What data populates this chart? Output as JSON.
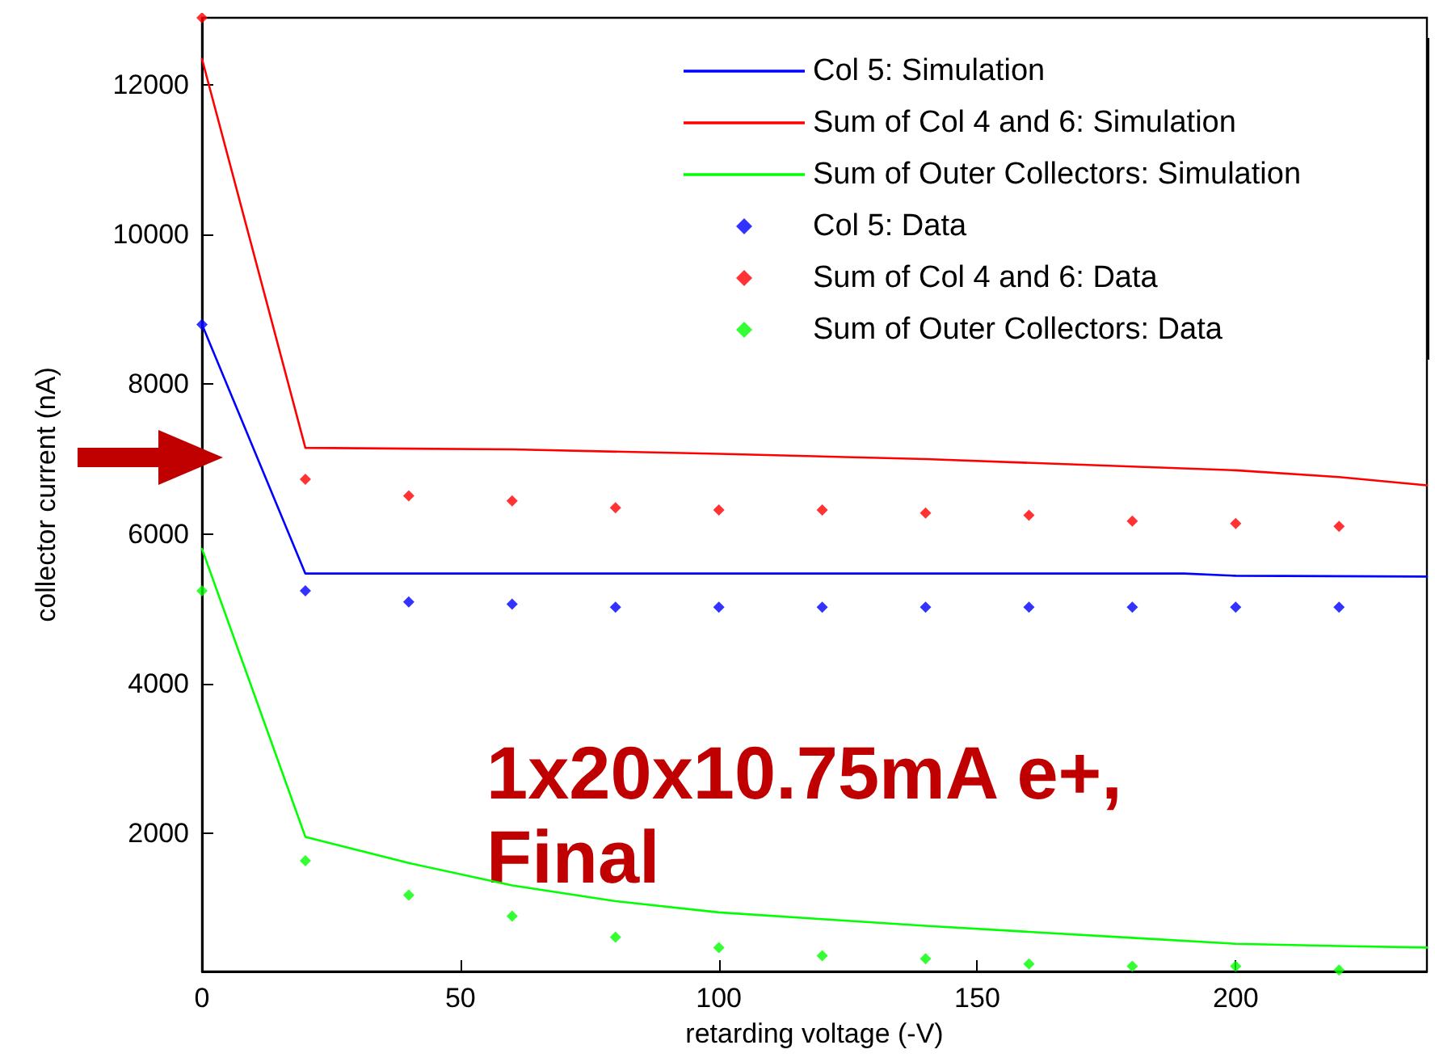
{
  "chart_data": {
    "type": "line",
    "xlabel": "retarding voltage (-V)",
    "ylabel": "collector current (nA)",
    "xlim": [
      0,
      237
    ],
    "ylim": [
      150,
      12900
    ],
    "xticks": [
      0,
      50,
      100,
      150,
      200
    ],
    "yticks": [
      2000,
      4000,
      6000,
      8000,
      10000,
      12000
    ],
    "grid": false,
    "legend": "top right",
    "annotations": [
      "1x20x10.75mA e+,\nFinal"
    ],
    "series": [
      {
        "name": "Col 5: Simulation",
        "color": "#0000ff",
        "line_style": "solid",
        "marker": "none",
        "x": [
          0,
          20,
          190,
          200,
          237
        ],
        "values": [
          8800,
          5470,
          5470,
          5440,
          5430
        ]
      },
      {
        "name": "Sum of Col 4 and 6: Simulation",
        "color": "#ff0000",
        "line_style": "solid",
        "marker": "none",
        "x": [
          0,
          20,
          60,
          100,
          140,
          180,
          200,
          220,
          237
        ],
        "values": [
          12350,
          7150,
          7130,
          7070,
          7000,
          6900,
          6850,
          6760,
          6650
        ]
      },
      {
        "name": "Sum of Outer Collectors: Simulation",
        "color": "#00ff00",
        "line_style": "solid",
        "marker": "none",
        "x": [
          0,
          20,
          40,
          60,
          80,
          100,
          120,
          140,
          160,
          180,
          200,
          220,
          237
        ],
        "values": [
          5800,
          1950,
          1600,
          1300,
          1090,
          940,
          850,
          760,
          680,
          600,
          520,
          490,
          470
        ]
      },
      {
        "name": "Col 5: Data",
        "type": "scatter",
        "color": "#0000ff",
        "marker": "diamond",
        "x": [
          0,
          20,
          40,
          60,
          80,
          100,
          120,
          140,
          160,
          180,
          200,
          220
        ],
        "values": [
          8800,
          5240,
          5090,
          5060,
          5020,
          5020,
          5020,
          5020,
          5020,
          5020,
          5020,
          5020
        ]
      },
      {
        "name": "Sum of Col 4 and 6: Data",
        "type": "scatter",
        "color": "#ff0000",
        "marker": "diamond",
        "x": [
          0,
          20,
          40,
          60,
          80,
          100,
          120,
          140,
          160,
          180,
          200,
          220
        ],
        "values": [
          12900,
          6730,
          6510,
          6440,
          6350,
          6320,
          6320,
          6280,
          6250,
          6170,
          6140,
          6100
        ]
      },
      {
        "name": "Sum of Outer Collectors: Data",
        "type": "scatter",
        "color": "#00ff00",
        "marker": "diamond",
        "x": [
          0,
          20,
          40,
          60,
          80,
          100,
          120,
          140,
          160,
          180,
          200,
          220
        ],
        "values": [
          5240,
          1630,
          1170,
          890,
          610,
          470,
          360,
          320,
          250,
          220,
          220,
          170
        ]
      }
    ]
  }
}
